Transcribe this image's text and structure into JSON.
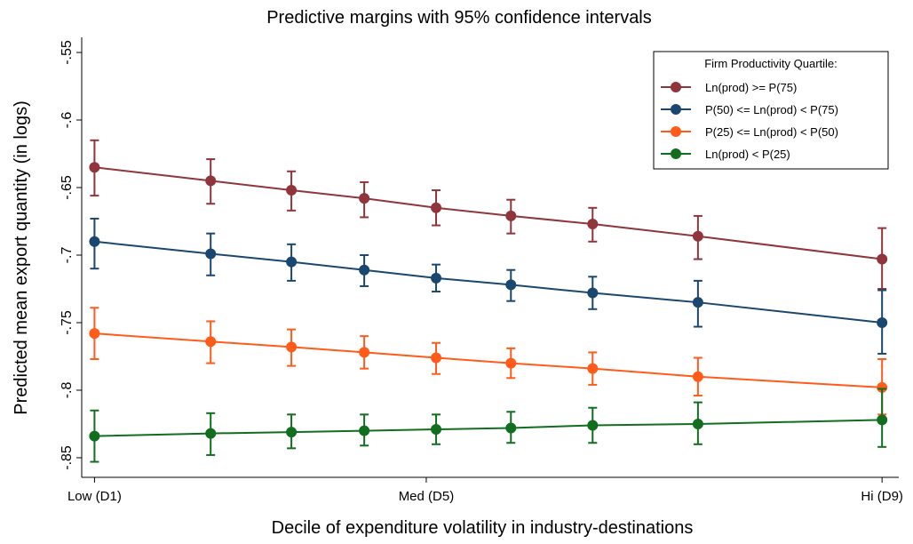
{
  "chart_data": {
    "type": "line",
    "title": "Predictive margins with 95% confidence intervals",
    "x_label": "Decile of expenditure volatility in industry-destinations",
    "y_label": "Predicted mean export quantity (in logs)",
    "legend_title": "Firm Productivity Quartile:",
    "legend": "upper-right",
    "grid": false,
    "x": [
      1,
      2.18,
      3.0,
      3.74,
      4.47,
      5.23,
      6.06,
      7.13,
      9
    ],
    "xlim": [
      0.87,
      9.17
    ],
    "xticks": [
      {
        "value": 1,
        "label": "Low (D1)"
      },
      {
        "value": 4.37,
        "label": "Med (D5)"
      },
      {
        "value": 9,
        "label": "Hi (D9)"
      }
    ],
    "ylim": [
      -0.8645,
      -0.5388
    ],
    "yticks": [
      {
        "value": -0.85,
        "label": "-.85"
      },
      {
        "value": -0.8,
        "label": "-.8"
      },
      {
        "value": -0.75,
        "label": "-.75"
      },
      {
        "value": -0.7,
        "label": "-.7"
      },
      {
        "value": -0.65,
        "label": "-.65"
      },
      {
        "value": -0.6,
        "label": "-.6"
      },
      {
        "value": -0.55,
        "label": "-.55"
      }
    ],
    "series": [
      {
        "name": "Ln(prod) >= P(75)",
        "color": "#90353b",
        "values": [
          -0.635,
          -0.645,
          -0.652,
          -0.658,
          -0.665,
          -0.671,
          -0.677,
          -0.686,
          -0.703
        ],
        "lower": [
          -0.656,
          -0.662,
          -0.667,
          -0.672,
          -0.678,
          -0.684,
          -0.69,
          -0.703,
          -0.725
        ],
        "upper": [
          -0.615,
          -0.629,
          -0.638,
          -0.646,
          -0.652,
          -0.659,
          -0.665,
          -0.671,
          -0.68
        ]
      },
      {
        "name": "P(50) <= Ln(prod) < P(75)",
        "color": "#1a476f",
        "values": [
          -0.69,
          -0.699,
          -0.705,
          -0.711,
          -0.717,
          -0.722,
          -0.728,
          -0.735,
          -0.75
        ],
        "lower": [
          -0.71,
          -0.715,
          -0.719,
          -0.723,
          -0.727,
          -0.734,
          -0.74,
          -0.753,
          -0.773
        ],
        "upper": [
          -0.673,
          -0.684,
          -0.692,
          -0.7,
          -0.707,
          -0.711,
          -0.716,
          -0.719,
          -0.726
        ]
      },
      {
        "name": "P(25) <= Ln(prod) < P(50)",
        "color": "#ff5b1a",
        "values": [
          -0.758,
          -0.764,
          -0.768,
          -0.772,
          -0.776,
          -0.78,
          -0.784,
          -0.79,
          -0.798
        ],
        "lower": [
          -0.777,
          -0.78,
          -0.782,
          -0.784,
          -0.788,
          -0.791,
          -0.796,
          -0.804,
          -0.818
        ],
        "upper": [
          -0.739,
          -0.749,
          -0.755,
          -0.76,
          -0.765,
          -0.769,
          -0.772,
          -0.776,
          -0.777
        ]
      },
      {
        "name": "Ln(prod) < P(25)",
        "color": "#116e1f",
        "values": [
          -0.834,
          -0.832,
          -0.831,
          -0.83,
          -0.829,
          -0.828,
          -0.826,
          -0.825,
          -0.822
        ],
        "lower": [
          -0.853,
          -0.848,
          -0.843,
          -0.841,
          -0.84,
          -0.839,
          -0.839,
          -0.84,
          -0.842
        ],
        "upper": [
          -0.815,
          -0.817,
          -0.818,
          -0.818,
          -0.818,
          -0.816,
          -0.813,
          -0.809,
          -0.799
        ]
      }
    ]
  }
}
